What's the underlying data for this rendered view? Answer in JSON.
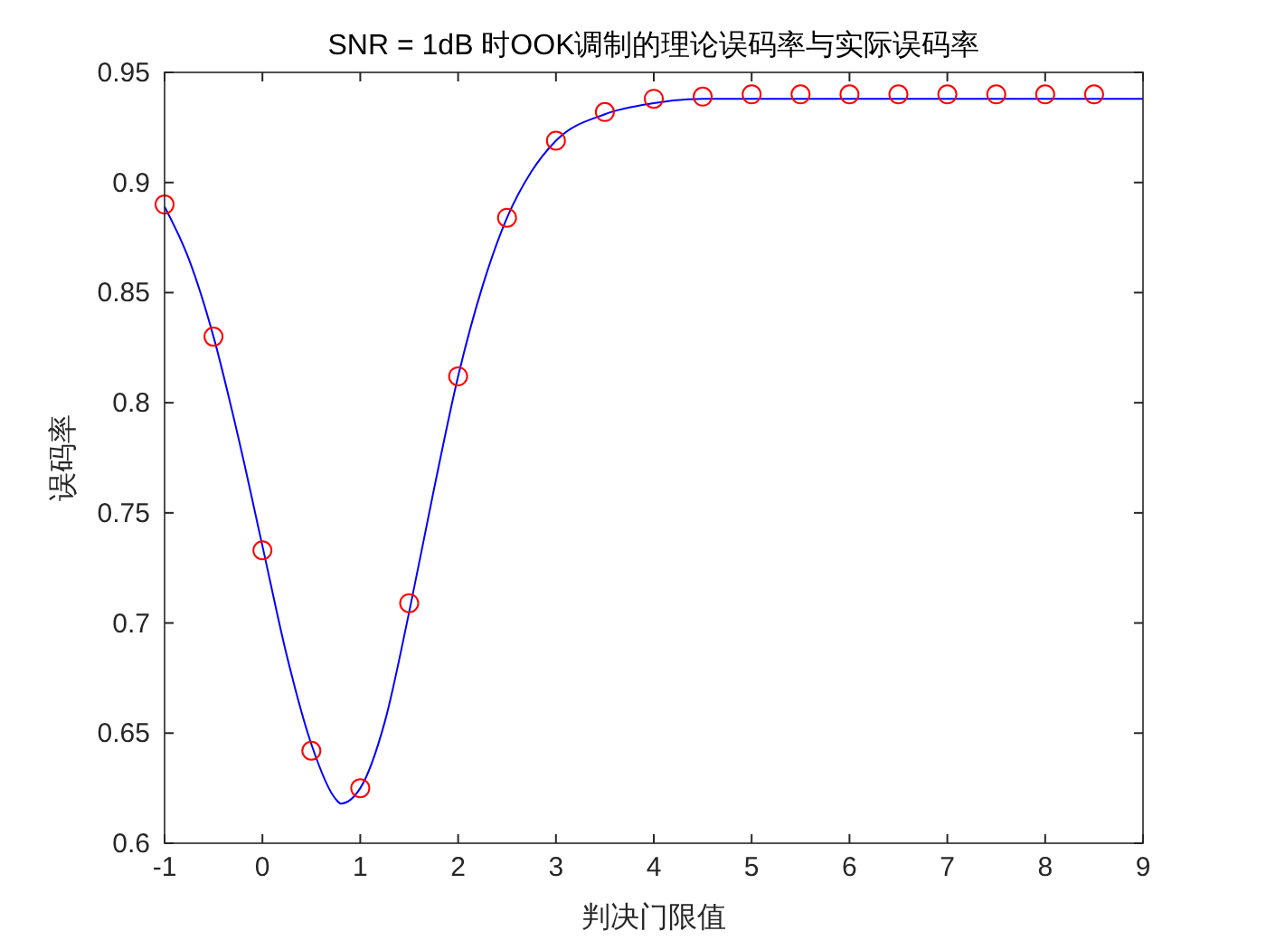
{
  "chart_data": {
    "type": "line",
    "title": "SNR = 1dB 时OOK调制的理论误码率与实际误码率",
    "xlabel": "判决门限值",
    "ylabel": "误码率",
    "xlim": [
      -1,
      9
    ],
    "xticks": [
      -1,
      0,
      1,
      2,
      3,
      4,
      5,
      6,
      7,
      8,
      9
    ],
    "ylim": [
      0.6,
      0.95
    ],
    "yticks": [
      0.6,
      0.65,
      0.7,
      0.75,
      0.8,
      0.85,
      0.9,
      0.95
    ],
    "grid": false,
    "series": [
      {
        "color": "#0000ff",
        "marker": "none",
        "x": [
          -1,
          -0.75,
          -0.5,
          -0.25,
          0,
          0.25,
          0.5,
          0.75,
          0.8,
          1,
          1.25,
          1.5,
          1.75,
          2,
          2.25,
          2.5,
          2.75,
          3,
          3.5,
          4,
          4.5,
          5,
          9
        ],
        "values": [
          0.889,
          0.865,
          0.83,
          0.785,
          0.735,
          0.685,
          0.645,
          0.62,
          0.618,
          0.625,
          0.655,
          0.705,
          0.76,
          0.812,
          0.853,
          0.884,
          0.905,
          0.919,
          0.931,
          0.936,
          0.938,
          0.938,
          0.938
        ]
      },
      {
        "type": "scatter",
        "color": "#ff0000",
        "marker": "circle",
        "x": [
          -1,
          -0.5,
          0,
          0.5,
          1,
          1.5,
          2,
          2.5,
          3,
          3.5,
          4,
          4.5,
          5,
          5.5,
          6,
          6.5,
          7,
          7.5,
          8,
          8.5
        ],
        "values": [
          0.89,
          0.83,
          0.733,
          0.642,
          0.625,
          0.709,
          0.812,
          0.884,
          0.919,
          0.932,
          0.938,
          0.939,
          0.94,
          0.94,
          0.94,
          0.94,
          0.94,
          0.94,
          0.94,
          0.94
        ]
      }
    ]
  }
}
